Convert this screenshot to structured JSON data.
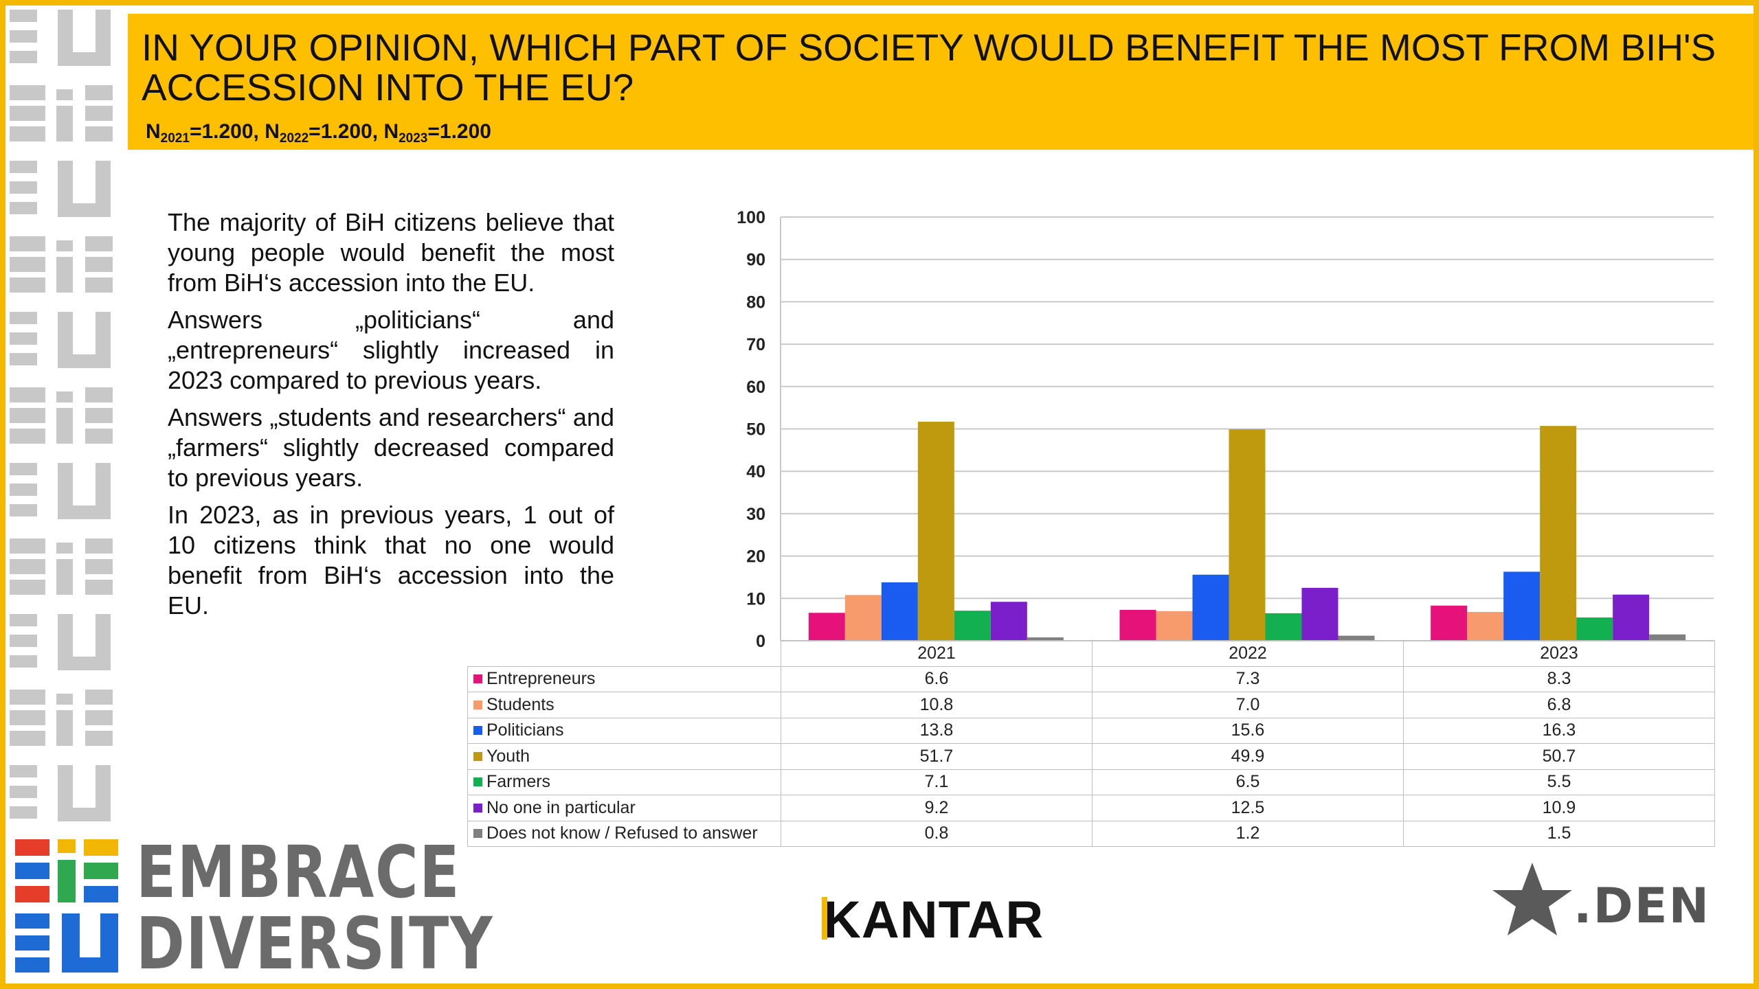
{
  "header": {
    "title": "IN YOUR OPINION, WHICH PART OF SOCIETY WOULD BENEFIT THE MOST FROM BIH'S ACCESSION INTO THE EU?",
    "sample_parts": [
      {
        "n": "N",
        "sub": "2021",
        "val": "=1.200, "
      },
      {
        "n": "N",
        "sub": "2022",
        "val": "=1.200, "
      },
      {
        "n": "N",
        "sub": "2023",
        "val": "=1.200"
      }
    ]
  },
  "narrative": [
    "The majority of BiH citizens believe that young people would benefit the most from BiH‘s accession into the EU.",
    "Answers „politicians“ and „entrepreneurs“ slightly increased in 2023 compared to previous years.",
    "Answers „students and researchers“ and „farmers“ slightly decreased compared to previous years.",
    "In 2023, as in previous years, 1 out of 10 citizens think that no one would benefit from BiH‘s accession into the EU."
  ],
  "chart_data": {
    "type": "bar",
    "categories": [
      "2021",
      "2022",
      "2023"
    ],
    "ylim": [
      0,
      100
    ],
    "yticks": [
      "0",
      "10",
      "20",
      "30",
      "40",
      "50",
      "60",
      "70",
      "80",
      "90",
      "100"
    ],
    "grid": true,
    "series": [
      {
        "name": "Entrepreneurs",
        "color": "#e5127a",
        "values": [
          6.6,
          7.3,
          8.3
        ],
        "labels": [
          "6.6",
          "7.3",
          "8.3"
        ]
      },
      {
        "name": "Students",
        "color": "#f79a6c",
        "values": [
          10.8,
          7.0,
          6.8
        ],
        "labels": [
          "10.8",
          "7.0",
          "6.8"
        ]
      },
      {
        "name": "Politicians",
        "color": "#1a5cf0",
        "values": [
          13.8,
          15.6,
          16.3
        ],
        "labels": [
          "13.8",
          "15.6",
          "16.3"
        ]
      },
      {
        "name": "Youth",
        "color": "#bf9a0e",
        "values": [
          51.7,
          49.9,
          50.7
        ],
        "labels": [
          "51.7",
          "49.9",
          "50.7"
        ]
      },
      {
        "name": "Farmers",
        "color": "#12b050",
        "values": [
          7.1,
          6.5,
          5.5
        ],
        "labels": [
          "7.1",
          "6.5",
          "5.5"
        ]
      },
      {
        "name": "No one in particular",
        "color": "#7a1fc9",
        "values": [
          9.2,
          12.5,
          10.9
        ],
        "labels": [
          "9.2",
          "12.5",
          "10.9"
        ]
      },
      {
        "name": "Does not know / Refused to answer",
        "color": "#7f7f7f",
        "values": [
          0.8,
          1.2,
          1.5
        ],
        "labels": [
          "0.8",
          "1.2",
          "1.5"
        ]
      }
    ]
  },
  "footer": {
    "brand_line1": "EMBRACE",
    "brand_line2": "DIVERSITY",
    "kantar_k": "K",
    "kantar_rest": "ANTAR",
    "den_label": ".DEN"
  },
  "colors": {
    "accent_yellow": "#fdbf00",
    "frame": "#f4b800",
    "side_gray": "#c8c8c8"
  }
}
